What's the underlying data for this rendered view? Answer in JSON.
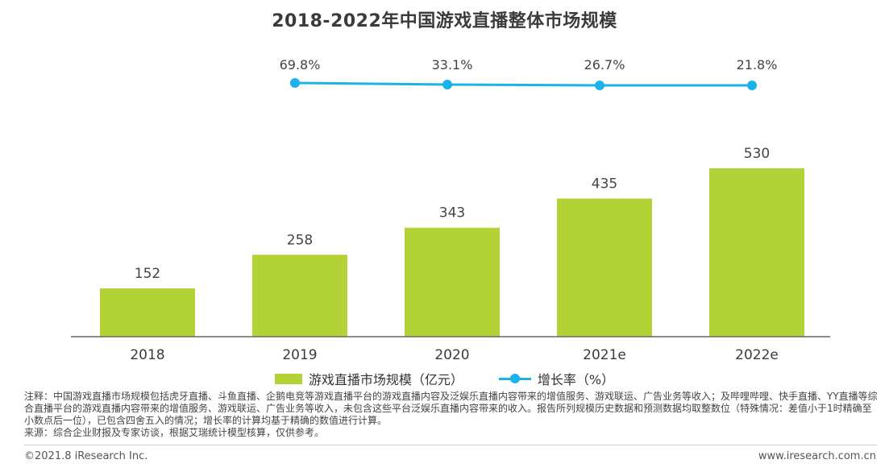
{
  "title": "2018-2022年中国游戏直播整体市场规模",
  "colors": {
    "bar": "#b2d235",
    "line": "#1ab2e8",
    "axis": "#666666"
  },
  "chart_data": {
    "type": "bar",
    "categories": [
      "2018",
      "2019",
      "2020",
      "2021e",
      "2022e"
    ],
    "series": [
      {
        "name": "游戏直播市场规模（亿元）",
        "type": "bar",
        "values": [
          152,
          258,
          343,
          435,
          530
        ]
      },
      {
        "name": "增长率（%）",
        "type": "line",
        "values": [
          null,
          69.8,
          33.1,
          26.7,
          21.8
        ]
      }
    ],
    "bar_labels": [
      "152",
      "258",
      "343",
      "435",
      "530"
    ],
    "rate_labels": [
      "",
      "69.8%",
      "33.1%",
      "26.7%",
      "21.8%"
    ],
    "legend_position": "bottom",
    "grid": false
  },
  "legend": {
    "bar_label": "游戏直播市场规模（亿元）",
    "line_label": "增长率（%）"
  },
  "notes": [
    "注释：中国游戏直播市场规模包括虎牙直播、斗鱼直播、企鹅电竞等游戏直播平台的游戏直播内容及泛娱乐直播内容带来的增值服务、游戏联运、广告业务等收入；及哔哩哔哩、快手直播、YY直播等综合直播平台的游戏直播内容带来的增值服务、游戏联运、广告业务等收入，未包含这些平台泛娱乐直播内容带来的收入。报告所列规模历史数据和预测数据均取整数位（特殊情况：差值小于1时精确至小数点后一位），已包含四舍五入的情况；增长率的计算均基于精确的数值进行计算。",
    "来源：综合企业财报及专家访谈，根据艾瑞统计模型核算，仅供参考。"
  ],
  "footer": {
    "copyright": "©2021.8 iResearch Inc.",
    "website": "www.iresearch.com.cn"
  }
}
